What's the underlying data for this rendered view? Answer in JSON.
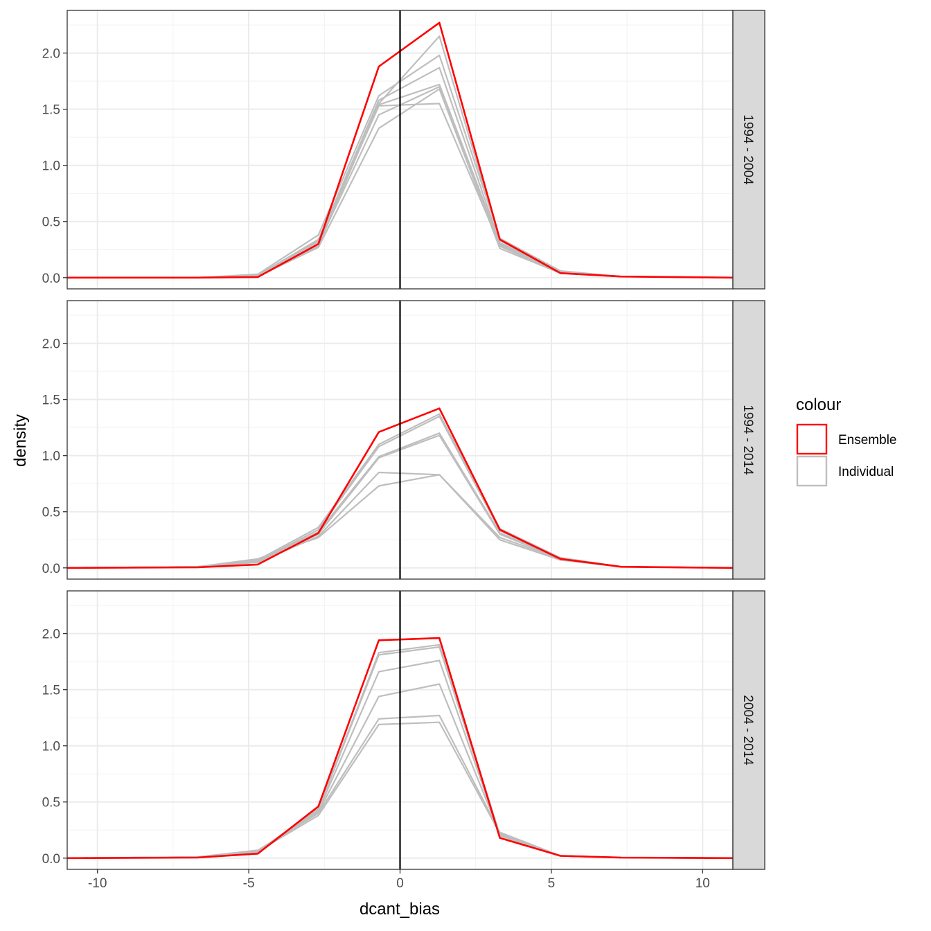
{
  "chart_data": {
    "type": "line",
    "xlabel": "dcant_bias",
    "ylabel": "density",
    "xlim": [
      -11,
      11
    ],
    "ylim": [
      -0.1,
      2.38
    ],
    "x_ticks": [
      -10,
      -5,
      0,
      5,
      10
    ],
    "x_tick_labels": [
      "-10",
      "-5",
      "0",
      "5",
      "10"
    ],
    "y_ticks": [
      0,
      0.5,
      1,
      1.5,
      2
    ],
    "y_tick_labels": [
      "0.0",
      "0.5",
      "1.0",
      "1.5",
      "2.0"
    ],
    "vline_x": 0,
    "grid": true,
    "theme": "bw",
    "legend": {
      "title": "colour",
      "position": "right",
      "entries": [
        {
          "label": "Ensemble",
          "color": "#ff0000"
        },
        {
          "label": "Individual",
          "color": "#bebebe"
        }
      ]
    },
    "colors": {
      "ensemble": "#ff0000",
      "individual": "#bebebe",
      "vline": "#000000"
    },
    "x": [
      -11,
      -6.7,
      -4.7,
      -2.7,
      -0.7,
      1.3,
      3.3,
      5.3,
      7.3,
      11
    ],
    "panels": [
      {
        "strip": "1994 - 2004",
        "ensemble": [
          0,
          0,
          0.005,
          0.3,
          1.88,
          2.27,
          0.34,
          0.04,
          0.01,
          0
        ],
        "individual": [
          [
            0,
            0,
            0.01,
            0.28,
            1.55,
            2.15,
            0.33,
            0.05,
            0.01,
            0
          ],
          [
            0,
            0,
            0.03,
            0.38,
            1.62,
            1.98,
            0.35,
            0.06,
            0.01,
            0
          ],
          [
            0,
            0,
            0.02,
            0.33,
            1.58,
            1.87,
            0.31,
            0.05,
            0.01,
            0
          ],
          [
            0,
            0,
            0.02,
            0.34,
            1.54,
            1.72,
            0.3,
            0.05,
            0.01,
            0
          ],
          [
            0,
            0,
            0.01,
            0.3,
            1.45,
            1.7,
            0.28,
            0.04,
            0.01,
            0
          ],
          [
            0,
            0,
            0.01,
            0.27,
            1.33,
            1.68,
            0.26,
            0.04,
            0.01,
            0
          ],
          [
            0,
            0,
            0.02,
            0.32,
            1.53,
            1.55,
            0.29,
            0.05,
            0.01,
            0
          ]
        ]
      },
      {
        "strip": "1994 - 2014",
        "ensemble": [
          0,
          0.005,
          0.03,
          0.31,
          1.21,
          1.42,
          0.34,
          0.08,
          0.01,
          0
        ],
        "individual": [
          [
            0,
            0.01,
            0.07,
            0.36,
            1.1,
            1.37,
            0.35,
            0.09,
            0.01,
            0
          ],
          [
            0,
            0.01,
            0.06,
            0.34,
            1.08,
            1.35,
            0.33,
            0.09,
            0.01,
            0
          ],
          [
            0,
            0.01,
            0.06,
            0.32,
            0.99,
            1.2,
            0.31,
            0.09,
            0.01,
            0
          ],
          [
            0,
            0.01,
            0.05,
            0.3,
            0.98,
            1.18,
            0.3,
            0.08,
            0.01,
            0
          ],
          [
            0,
            0.01,
            0.05,
            0.28,
            0.85,
            0.83,
            0.27,
            0.08,
            0.01,
            0
          ],
          [
            0,
            0.01,
            0.08,
            0.27,
            0.73,
            0.83,
            0.25,
            0.07,
            0.01,
            0
          ]
        ]
      },
      {
        "strip": "2004 - 2014",
        "ensemble": [
          0,
          0.005,
          0.04,
          0.46,
          1.94,
          1.96,
          0.18,
          0.02,
          0.005,
          0
        ],
        "individual": [
          [
            0,
            0.01,
            0.06,
            0.44,
            1.83,
            1.9,
            0.21,
            0.02,
            0.005,
            0
          ],
          [
            0,
            0.01,
            0.05,
            0.43,
            1.81,
            1.88,
            0.2,
            0.02,
            0.005,
            0
          ],
          [
            0,
            0.01,
            0.06,
            0.42,
            1.66,
            1.76,
            0.21,
            0.02,
            0.005,
            0
          ],
          [
            0,
            0.01,
            0.05,
            0.41,
            1.44,
            1.55,
            0.22,
            0.02,
            0.005,
            0
          ],
          [
            0,
            0.01,
            0.07,
            0.4,
            1.24,
            1.27,
            0.23,
            0.02,
            0.005,
            0
          ],
          [
            0,
            0.01,
            0.06,
            0.38,
            1.19,
            1.21,
            0.22,
            0.02,
            0.005,
            0
          ]
        ]
      }
    ]
  }
}
